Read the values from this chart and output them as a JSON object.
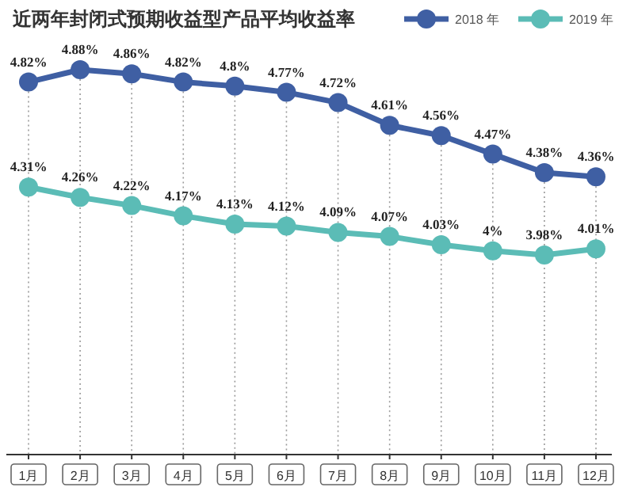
{
  "chart_data": {
    "type": "line",
    "title": "近两年封闭式预期收益型产品平均收益率",
    "categories": [
      "1月",
      "2月",
      "3月",
      "4月",
      "5月",
      "6月",
      "7月",
      "8月",
      "9月",
      "10月",
      "11月",
      "12月"
    ],
    "series": [
      {
        "name": "2018 年",
        "color": "#3f5fa3",
        "values": [
          4.82,
          4.88,
          4.86,
          4.82,
          4.8,
          4.77,
          4.72,
          4.61,
          4.56,
          4.47,
          4.38,
          4.36
        ],
        "value_labels": [
          "4.82%",
          "4.88%",
          "4.86%",
          "4.82%",
          "4.8%",
          "4.77%",
          "4.72%",
          "4.61%",
          "4.56%",
          "4.47%",
          "4.38%",
          "4.36%"
        ]
      },
      {
        "name": "2019 年",
        "color": "#5bbcb6",
        "values": [
          4.31,
          4.26,
          4.22,
          4.17,
          4.13,
          4.12,
          4.09,
          4.07,
          4.03,
          4,
          3.98,
          4.01
        ],
        "value_labels": [
          "4.31%",
          "4.26%",
          "4.22%",
          "4.17%",
          "4.13%",
          "4.12%",
          "4.09%",
          "4.07%",
          "4.03%",
          "4%",
          "3.98%",
          "4.01%"
        ]
      }
    ],
    "grid": "x",
    "legend": "top right",
    "marker": "circle",
    "line_style": "solid",
    "tick_labels": "x"
  }
}
